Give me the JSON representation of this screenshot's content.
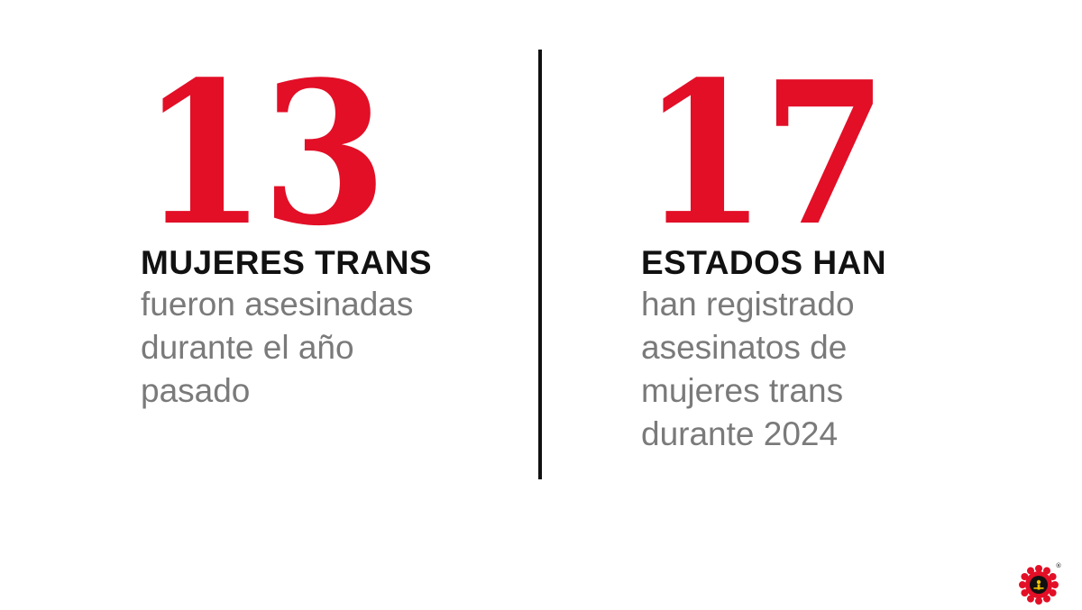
{
  "colors": {
    "accent_red": "#e20f27",
    "headline": "#111111",
    "body_gray": "#7a7a7a",
    "divider": "#111111"
  },
  "stats": [
    {
      "number": "13",
      "headline": "MUJERES TRANS",
      "description": "fueron asesinadas\ndurante el año\npasado"
    },
    {
      "number": "17",
      "headline": "ESTADOS HAN",
      "description": "han registrado\nasesinatos de\nmujeres trans\ndurante 2024"
    }
  ],
  "logo": {
    "icon": "publisher-seal-icon",
    "mark": "®"
  }
}
